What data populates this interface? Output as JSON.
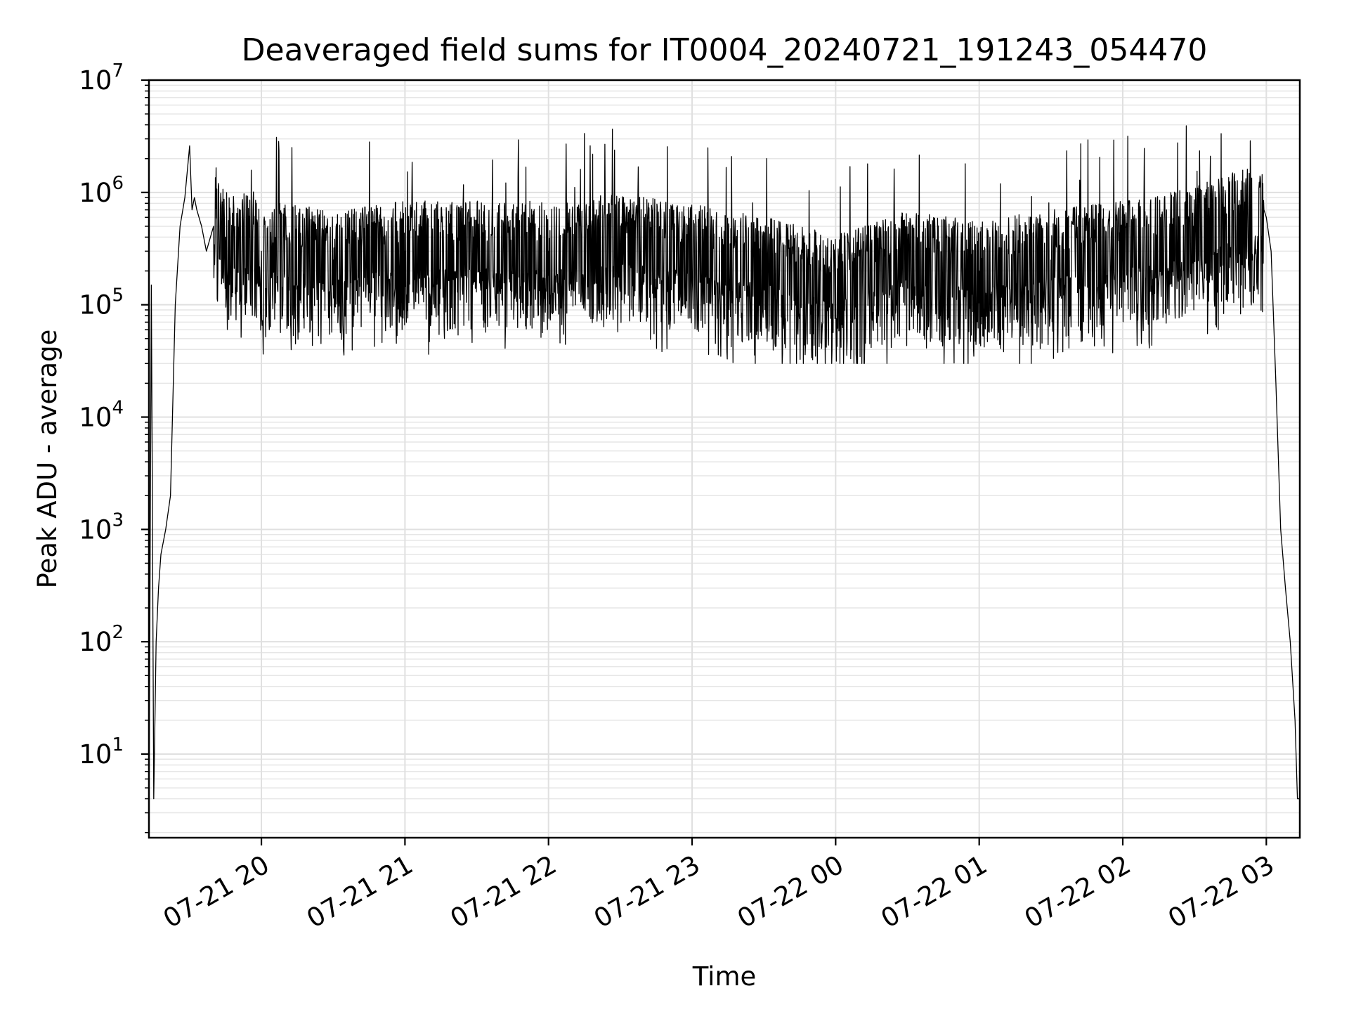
{
  "chart_data": {
    "type": "line",
    "title": "Deaveraged field sums for IT0004_20240721_191243_054470",
    "xlabel": "Time",
    "ylabel": "Peak ADU - average",
    "y_scale": "log",
    "ylim": [
      1.8,
      10000000
    ],
    "xlim": [
      "2024-07-21T19:13",
      "2024-07-22T03:14"
    ],
    "x_ticks": [
      "07-21 20",
      "07-21 21",
      "07-21 22",
      "07-21 23",
      "07-22 00",
      "07-22 01",
      "07-22 02",
      "07-22 03"
    ],
    "y_ticks": [
      {
        "base": "10",
        "exp": "1"
      },
      {
        "base": "10",
        "exp": "2"
      },
      {
        "base": "10",
        "exp": "3"
      },
      {
        "base": "10",
        "exp": "4"
      },
      {
        "base": "10",
        "exp": "5"
      },
      {
        "base": "10",
        "exp": "6"
      },
      {
        "base": "10",
        "exp": "7"
      }
    ],
    "grid": true,
    "line_color": "#000000",
    "series": [
      {
        "x": [
          "2024-07-21T19:13",
          "2024-07-21T19:14",
          "2024-07-21T19:15",
          "2024-07-21T19:16",
          "2024-07-21T19:17",
          "2024-07-21T19:18",
          "2024-07-21T19:20",
          "2024-07-21T19:22",
          "2024-07-21T19:24",
          "2024-07-21T19:26",
          "2024-07-21T19:28",
          "2024-07-21T19:30",
          "2024-07-21T19:31",
          "2024-07-21T19:32",
          "2024-07-21T19:33",
          "2024-07-21T19:35",
          "2024-07-21T19:37",
          "2024-07-21T19:40",
          "2024-07-21T19:45",
          "2024-07-21T19:50",
          "2024-07-21T19:55",
          "2024-07-21T20:00",
          "2024-07-21T20:30",
          "2024-07-21T21:00",
          "2024-07-21T21:30",
          "2024-07-21T22:00",
          "2024-07-21T22:30",
          "2024-07-21T23:00",
          "2024-07-21T23:30",
          "2024-07-22T00:00",
          "2024-07-22T00:30",
          "2024-07-22T01:00",
          "2024-07-22T01:30",
          "2024-07-22T02:00",
          "2024-07-22T02:30",
          "2024-07-22T02:59",
          "2024-07-22T03:00",
          "2024-07-22T03:02",
          "2024-07-22T03:04",
          "2024-07-22T03:06",
          "2024-07-22T03:08",
          "2024-07-22T03:10",
          "2024-07-22T03:12",
          "2024-07-22T03:13",
          "2024-07-22T03:14"
        ],
        "y": [
          2,
          150000,
          4,
          100,
          300,
          600,
          1000,
          2000,
          100000,
          500000,
          900000,
          2600000,
          700000,
          900000,
          700000,
          500000,
          300000,
          500000,
          400000,
          300000,
          400000,
          300000,
          250000,
          300000,
          300000,
          300000,
          350000,
          280000,
          220000,
          150000,
          250000,
          200000,
          250000,
          300000,
          400000,
          700000,
          600000,
          300000,
          20000,
          1000,
          300,
          100,
          20,
          4,
          4
        ]
      }
    ]
  }
}
